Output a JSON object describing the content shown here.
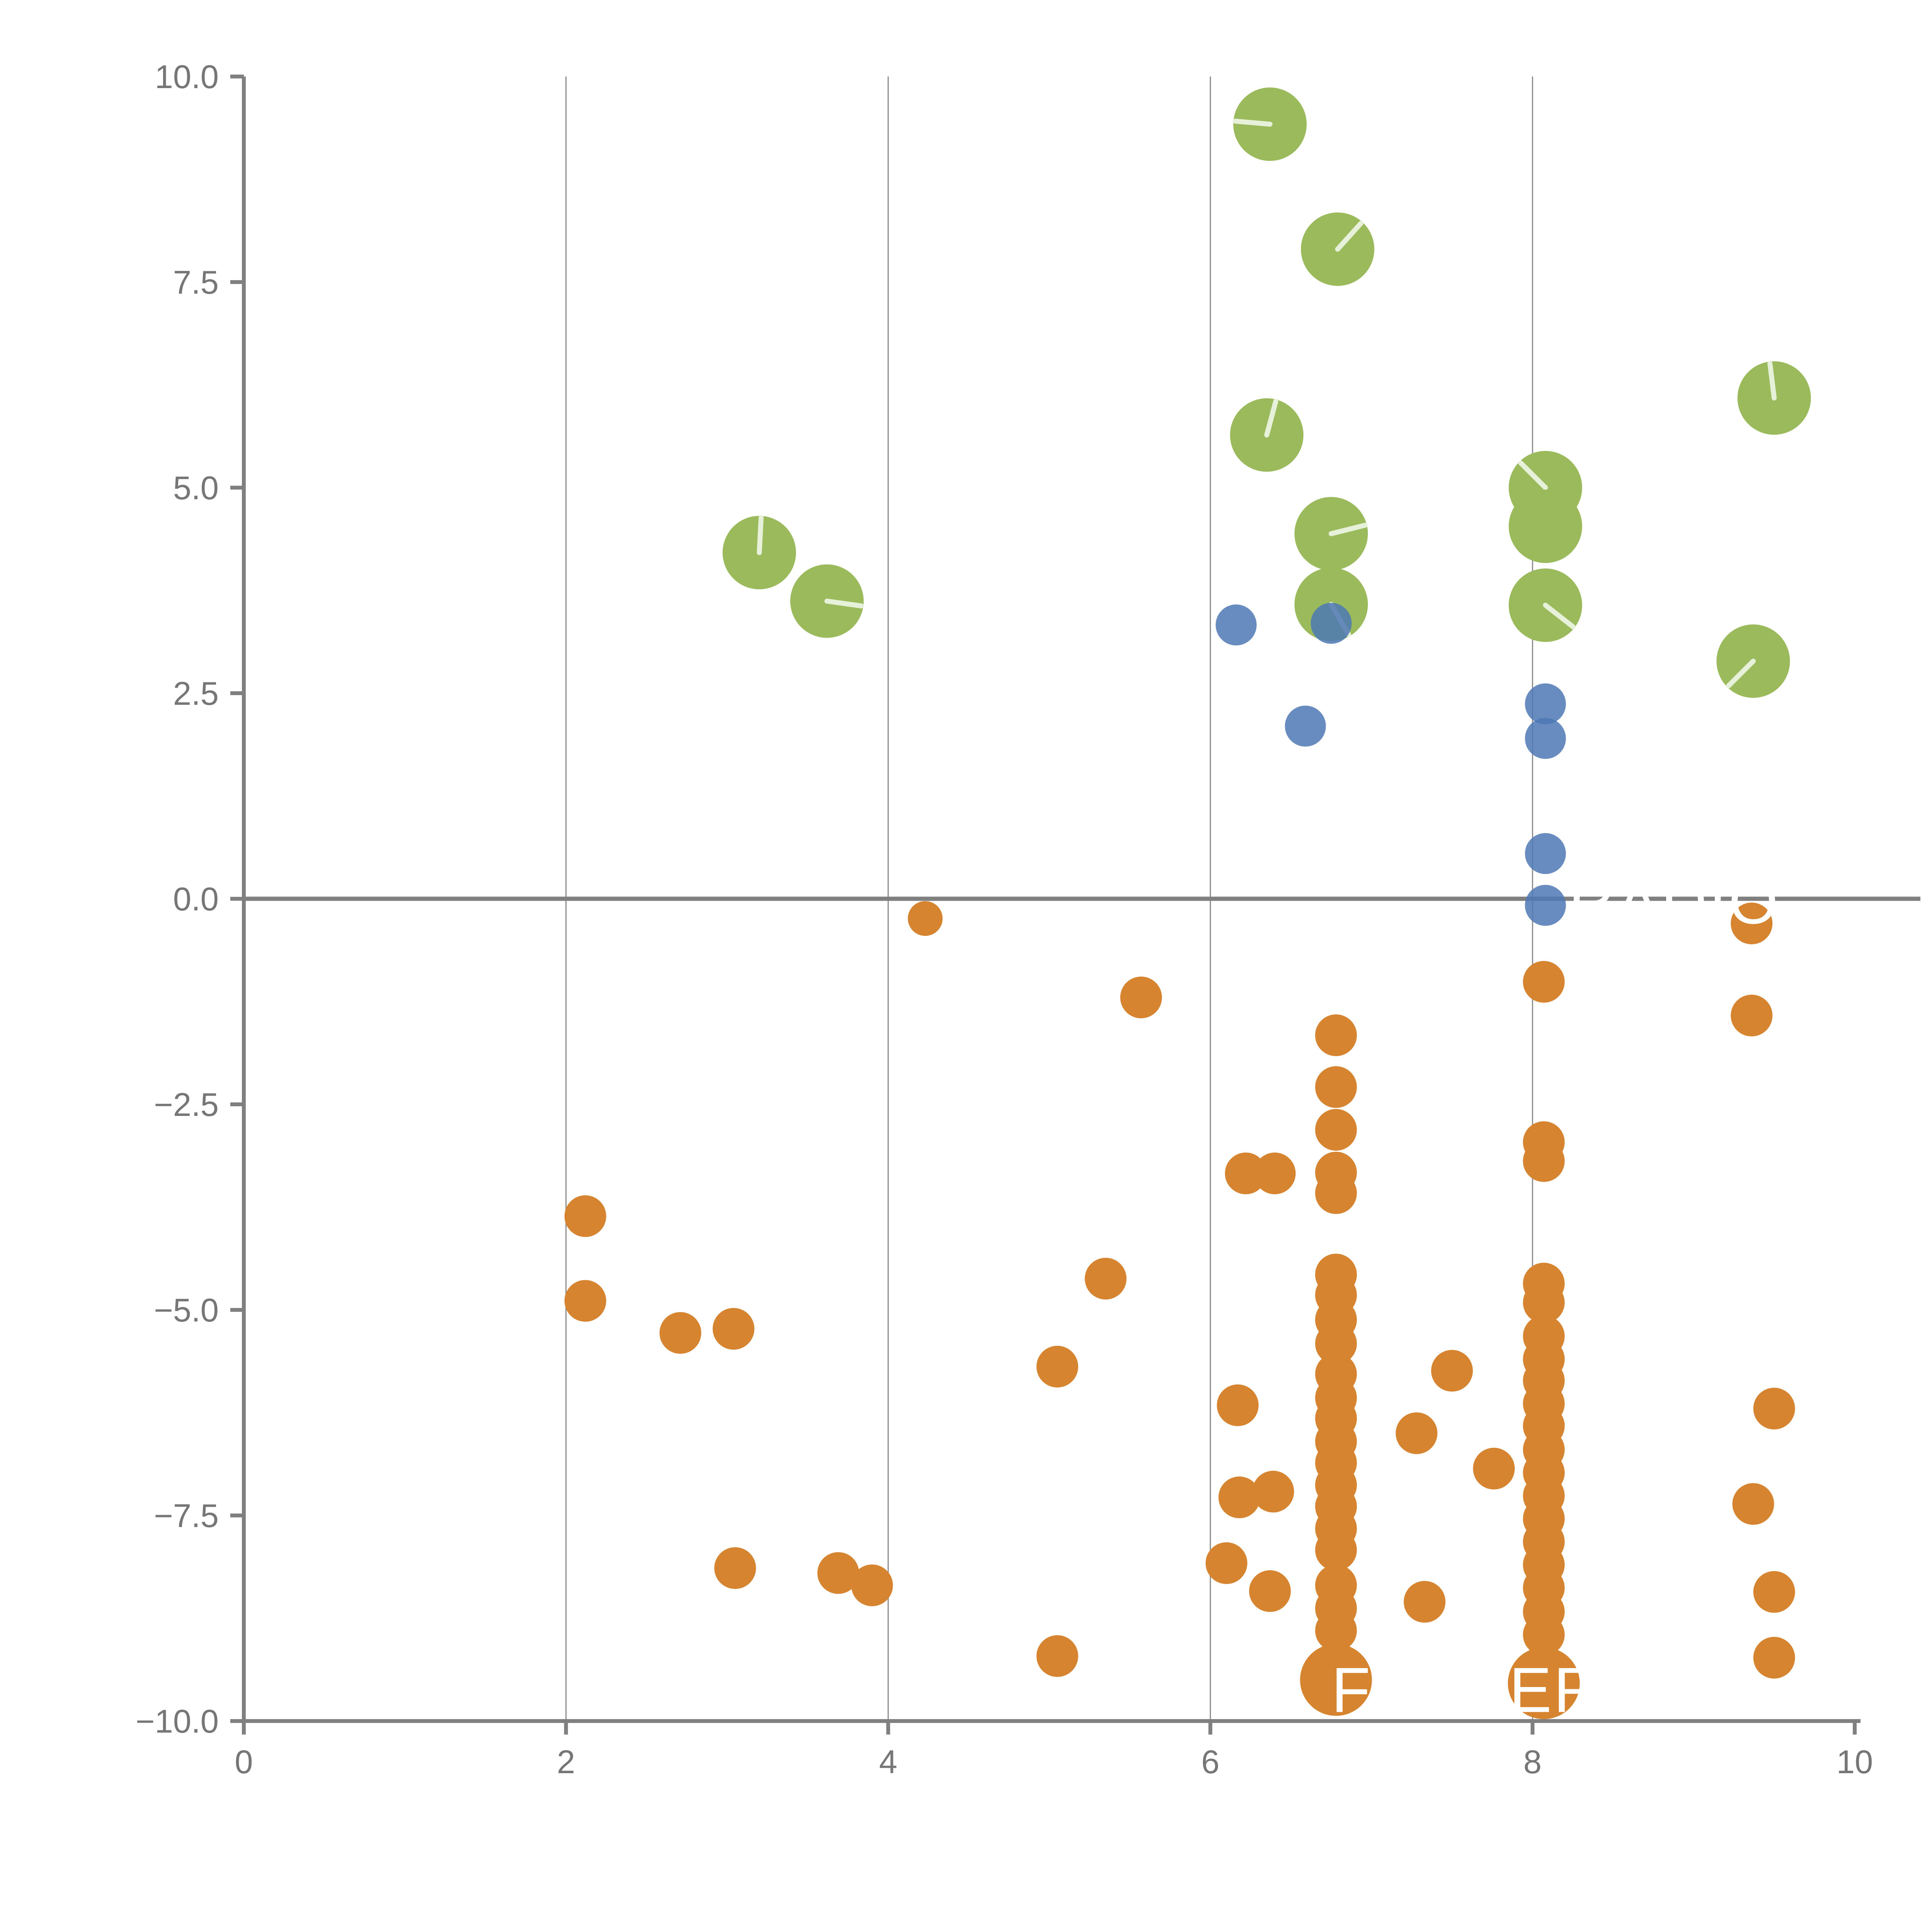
{
  "chart_data": {
    "type": "scatter",
    "title": "",
    "xlabel": "",
    "ylabel": "",
    "xlim": [
      0,
      10
    ],
    "ylim": [
      -10,
      10
    ],
    "grid": "vertical-only",
    "legend": "none",
    "x_ticks": [
      {
        "v": 0,
        "label": "0"
      },
      {
        "v": 2,
        "label": "2"
      },
      {
        "v": 4,
        "label": "4"
      },
      {
        "v": 6,
        "label": "6"
      },
      {
        "v": 8,
        "label": "8"
      },
      {
        "v": 10,
        "label": "10"
      }
    ],
    "y_ticks": [
      {
        "v": 10,
        "label": "10.0"
      },
      {
        "v": 7.5,
        "label": "7.5"
      },
      {
        "v": 5,
        "label": "5.0"
      },
      {
        "v": 2.5,
        "label": "2.5"
      },
      {
        "v": 0,
        "label": "0.0"
      },
      {
        "v": -2.5,
        "label": "−2.5"
      },
      {
        "v": -5,
        "label": "−5.0"
      },
      {
        "v": -7.5,
        "label": "−7.5"
      },
      {
        "v": -10,
        "label": "−10.0"
      }
    ],
    "gridlines_x": [
      2,
      4,
      6,
      8
    ],
    "zero_line_y": 0,
    "colors": {
      "orange": "#D6842F",
      "green": "#9ABA5C",
      "green_hand_line": "#E7F0D9",
      "blue": "#4D78B4",
      "axis": "#808080",
      "grid": "#8A8A8A",
      "tick_text": "#767676",
      "watermark": "#FFFFFF"
    },
    "series": [
      {
        "name": "green-pie-markers",
        "marker": "pie-circle-with-radius-line",
        "color": "#9ABA5C",
        "radius": 19,
        "points": [
          {
            "x": 6.37,
            "y": 9.42,
            "angle": 175
          },
          {
            "x": 6.79,
            "y": 7.9,
            "angle": 48
          },
          {
            "x": 6.35,
            "y": 5.64,
            "angle": 75
          },
          {
            "x": 9.5,
            "y": 6.09,
            "angle": 97
          },
          {
            "x": 3.2,
            "y": 4.21,
            "angle": 87
          },
          {
            "x": 3.62,
            "y": 3.62,
            "angle": -8
          },
          {
            "x": 8.08,
            "y": 5.0,
            "angle": 135
          },
          {
            "x": 8.08,
            "y": 4.53,
            "angle": null
          },
          {
            "x": 8.08,
            "y": 3.57,
            "angle": -38
          },
          {
            "x": 6.75,
            "y": 4.44,
            "angle": 14
          },
          {
            "x": 6.75,
            "y": 3.58,
            "angle": -60
          },
          {
            "x": 9.37,
            "y": 2.89,
            "angle": 225
          }
        ]
      },
      {
        "name": "blue-markers",
        "marker": "circle",
        "color": "#4D78B4",
        "radius": 10.6,
        "opacity": 0.85,
        "points": [
          {
            "x": 6.16,
            "y": 3.33
          },
          {
            "x": 6.75,
            "y": 3.35
          },
          {
            "x": 6.59,
            "y": 2.1
          },
          {
            "x": 8.08,
            "y": 2.37
          },
          {
            "x": 8.08,
            "y": 1.95
          },
          {
            "x": 8.08,
            "y": 0.55
          },
          {
            "x": 8.08,
            "y": -0.08
          }
        ]
      },
      {
        "name": "orange-markers",
        "marker": "circle",
        "color": "#D6842F",
        "radii": {
          "s": 9,
          "m": 10.8,
          "l": 18.6
        },
        "points": [
          {
            "x": 4.23,
            "y": -0.24,
            "size": "s"
          },
          {
            "x": 5.57,
            "y": -1.2,
            "size": "m"
          },
          {
            "x": 9.36,
            "y": -0.3,
            "size": "m"
          },
          {
            "x": 9.36,
            "y": -1.42,
            "size": "m"
          },
          {
            "x": 8.07,
            "y": -1.01,
            "size": "m"
          },
          {
            "x": 6.22,
            "y": -3.34,
            "size": "m"
          },
          {
            "x": 6.4,
            "y": -3.34,
            "size": "m"
          },
          {
            "x": 2.12,
            "y": -3.86,
            "size": "m"
          },
          {
            "x": 2.12,
            "y": -4.89,
            "size": "m"
          },
          {
            "x": 2.71,
            "y": -5.28,
            "size": "m"
          },
          {
            "x": 3.04,
            "y": -5.23,
            "size": "m"
          },
          {
            "x": 5.35,
            "y": -4.62,
            "size": "m"
          },
          {
            "x": 5.05,
            "y": -5.69,
            "size": "m"
          },
          {
            "x": 7.5,
            "y": -5.74,
            "size": "m"
          },
          {
            "x": 7.28,
            "y": -6.5,
            "size": "m"
          },
          {
            "x": 7.76,
            "y": -6.93,
            "size": "m"
          },
          {
            "x": 7.33,
            "y": -8.55,
            "size": "m"
          },
          {
            "x": 6.17,
            "y": -6.16,
            "size": "m"
          },
          {
            "x": 6.18,
            "y": -7.28,
            "size": "m"
          },
          {
            "x": 6.39,
            "y": -7.21,
            "size": "m"
          },
          {
            "x": 6.1,
            "y": -8.08,
            "size": "m"
          },
          {
            "x": 6.37,
            "y": -8.42,
            "size": "m"
          },
          {
            "x": 3.05,
            "y": -8.14,
            "size": "m"
          },
          {
            "x": 3.69,
            "y": -8.2,
            "size": "m"
          },
          {
            "x": 3.9,
            "y": -8.35,
            "size": "m"
          },
          {
            "x": 5.05,
            "y": -9.21,
            "size": "m"
          },
          {
            "x": 9.5,
            "y": -6.2,
            "size": "m"
          },
          {
            "x": 9.37,
            "y": -7.36,
            "size": "m"
          },
          {
            "x": 9.5,
            "y": -8.43,
            "size": "m"
          },
          {
            "x": 9.5,
            "y": -9.23,
            "size": "m"
          },
          {
            "x": 6.78,
            "y": -1.66,
            "size": "m"
          },
          {
            "x": 6.78,
            "y": -2.29,
            "size": "m"
          },
          {
            "x": 6.78,
            "y": -2.81,
            "size": "m"
          },
          {
            "x": 6.78,
            "y": -3.33,
            "size": "m"
          },
          {
            "x": 6.78,
            "y": -3.58,
            "size": "m"
          },
          {
            "x": 6.78,
            "y": -4.57,
            "size": "m"
          },
          {
            "x": 6.78,
            "y": -4.82,
            "size": "m"
          },
          {
            "x": 6.78,
            "y": -5.12,
            "size": "m"
          },
          {
            "x": 6.78,
            "y": -5.41,
            "size": "m"
          },
          {
            "x": 6.78,
            "y": -5.78,
            "size": "m"
          },
          {
            "x": 6.78,
            "y": -6.07,
            "size": "m"
          },
          {
            "x": 6.78,
            "y": -6.32,
            "size": "m"
          },
          {
            "x": 6.78,
            "y": -6.6,
            "size": "m"
          },
          {
            "x": 6.78,
            "y": -6.86,
            "size": "m"
          },
          {
            "x": 6.78,
            "y": -7.13,
            "size": "m"
          },
          {
            "x": 6.78,
            "y": -7.39,
            "size": "m"
          },
          {
            "x": 6.78,
            "y": -7.66,
            "size": "m"
          },
          {
            "x": 6.78,
            "y": -7.92,
            "size": "m"
          },
          {
            "x": 6.78,
            "y": -8.35,
            "size": "m"
          },
          {
            "x": 6.78,
            "y": -8.63,
            "size": "m"
          },
          {
            "x": 6.78,
            "y": -8.9,
            "size": "m"
          },
          {
            "x": 6.78,
            "y": -9.5,
            "size": "l"
          },
          {
            "x": 8.07,
            "y": -2.96,
            "size": "m"
          },
          {
            "x": 8.07,
            "y": -3.19,
            "size": "m"
          },
          {
            "x": 8.07,
            "y": -4.68,
            "size": "m"
          },
          {
            "x": 8.07,
            "y": -4.91,
            "size": "m"
          },
          {
            "x": 8.07,
            "y": -5.32,
            "size": "m"
          },
          {
            "x": 8.07,
            "y": -5.6,
            "size": "m"
          },
          {
            "x": 8.07,
            "y": -5.86,
            "size": "m"
          },
          {
            "x": 8.07,
            "y": -6.14,
            "size": "m"
          },
          {
            "x": 8.07,
            "y": -6.41,
            "size": "m"
          },
          {
            "x": 8.07,
            "y": -6.7,
            "size": "m"
          },
          {
            "x": 8.07,
            "y": -6.98,
            "size": "m"
          },
          {
            "x": 8.07,
            "y": -7.26,
            "size": "m"
          },
          {
            "x": 8.07,
            "y": -7.54,
            "size": "m"
          },
          {
            "x": 8.07,
            "y": -7.82,
            "size": "m"
          },
          {
            "x": 8.07,
            "y": -8.1,
            "size": "m"
          },
          {
            "x": 8.07,
            "y": -8.38,
            "size": "m"
          },
          {
            "x": 8.07,
            "y": -8.67,
            "size": "m"
          },
          {
            "x": 8.07,
            "y": -8.95,
            "size": "m"
          },
          {
            "x": 8.07,
            "y": -9.54,
            "size": "l"
          }
        ]
      }
    ],
    "watermarks": [
      {
        "text": "RADIO",
        "x": 8.88,
        "y": -0.3,
        "font_size": 33
      },
      {
        "text": "FOLDER",
        "x": 7.59,
        "y": -9.89,
        "font_size": 33
      }
    ]
  }
}
